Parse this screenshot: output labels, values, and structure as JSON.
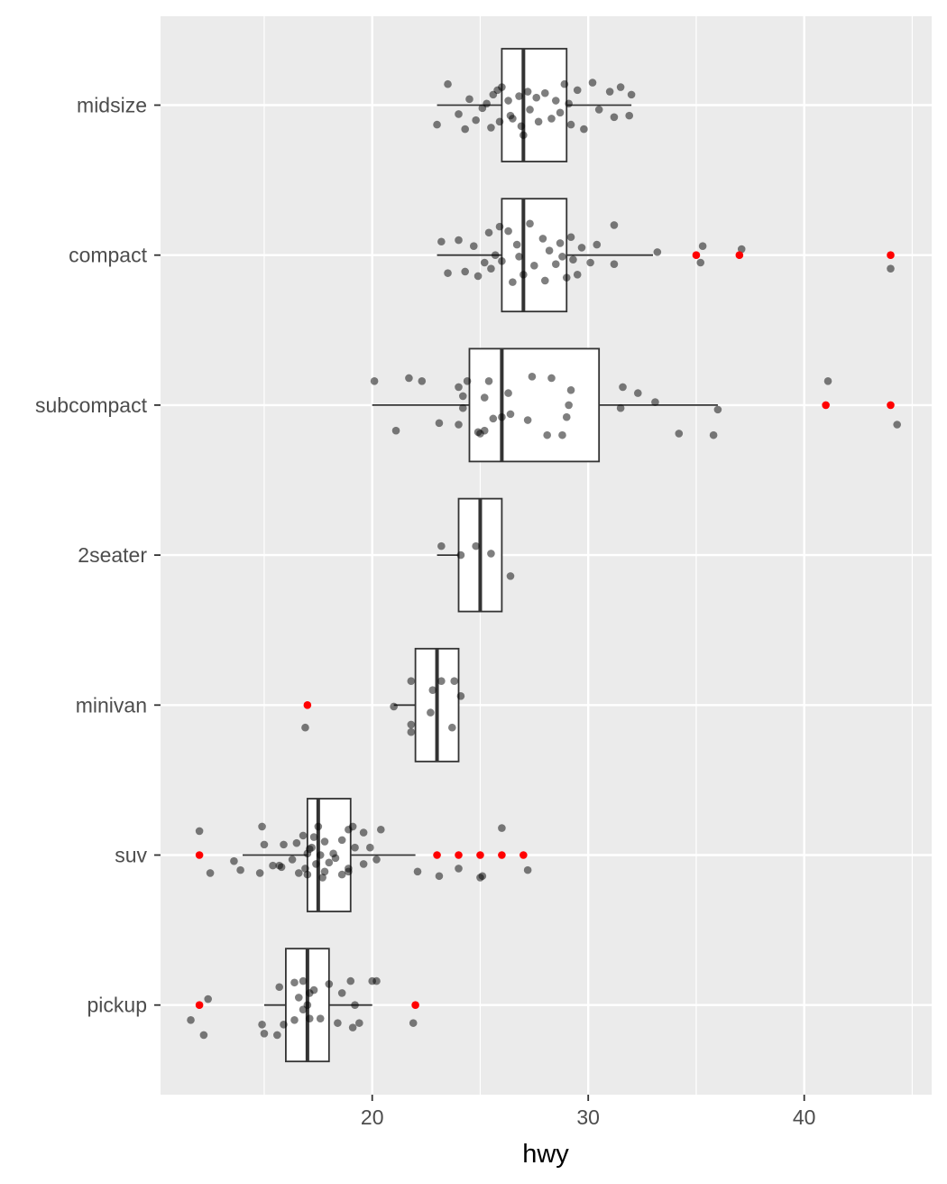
{
  "chart_data": {
    "type": "boxplot",
    "orientation": "horizontal",
    "xlabel": "hwy",
    "ylabel": "",
    "xlim": [
      10.2,
      45.9
    ],
    "xticks": [
      20,
      30,
      40
    ],
    "xtick_labels": [
      "20",
      "30",
      "40"
    ],
    "categories": [
      "midsize",
      "compact",
      "subcompact",
      "2seater",
      "minivan",
      "suv",
      "pickup"
    ],
    "grid": true,
    "legend": "none",
    "colors": {
      "panel_background": "#ebebeb",
      "grid": "#ffffff",
      "box_fill": "#ffffff",
      "box_line": "#333333",
      "jitter_point": "#000000",
      "jitter_alpha": 0.5,
      "outlier": "#ff0000"
    },
    "boxes": [
      {
        "category": "midsize",
        "whisker_low": 23,
        "q1": 26,
        "median": 27,
        "q3": 29,
        "whisker_high": 32,
        "outliers": []
      },
      {
        "category": "compact",
        "whisker_low": 23,
        "q1": 26,
        "median": 27,
        "q3": 29,
        "whisker_high": 33,
        "outliers": [
          35,
          37,
          44
        ]
      },
      {
        "category": "subcompact",
        "whisker_low": 20,
        "q1": 24.5,
        "median": 26,
        "q3": 30.5,
        "whisker_high": 36,
        "outliers": [
          41,
          44
        ]
      },
      {
        "category": "2seater",
        "whisker_low": 23,
        "q1": 24,
        "median": 25,
        "q3": 26,
        "whisker_high": 26,
        "outliers": []
      },
      {
        "category": "minivan",
        "whisker_low": 21,
        "q1": 22,
        "median": 23,
        "q3": 24,
        "whisker_high": 24,
        "outliers": [
          17
        ]
      },
      {
        "category": "suv",
        "whisker_low": 14,
        "q1": 17,
        "median": 17.5,
        "q3": 19,
        "whisker_high": 22,
        "outliers": [
          12,
          23,
          24,
          25,
          26,
          27
        ]
      },
      {
        "category": "pickup",
        "whisker_low": 15,
        "q1": 16,
        "median": 17,
        "q3": 18,
        "whisker_high": 20,
        "outliers": [
          12,
          22
        ]
      }
    ],
    "jitter_points": [
      {
        "category": "midsize",
        "points": [
          [
            23.5,
            0.14
          ],
          [
            24.5,
            0.04
          ],
          [
            25.3,
            0.01
          ],
          [
            25.6,
            0.07
          ],
          [
            26.0,
            0.12
          ],
          [
            26.3,
            0.03
          ],
          [
            26.8,
            0.06
          ],
          [
            27.2,
            0.09
          ],
          [
            27.6,
            0.05
          ],
          [
            28.0,
            0.08
          ],
          [
            28.5,
            0.03
          ],
          [
            28.9,
            0.14
          ],
          [
            29.1,
            0.01
          ],
          [
            29.5,
            0.1
          ],
          [
            30.2,
            0.15
          ],
          [
            31.0,
            0.09
          ],
          [
            31.5,
            0.12
          ],
          [
            32.0,
            0.07
          ],
          [
            23.0,
            -0.13
          ],
          [
            24.0,
            -0.06
          ],
          [
            24.8,
            -0.1
          ],
          [
            25.1,
            -0.02
          ],
          [
            25.5,
            -0.15
          ],
          [
            25.9,
            -0.11
          ],
          [
            26.4,
            -0.07
          ],
          [
            26.9,
            -0.14
          ],
          [
            27.3,
            -0.03
          ],
          [
            27.7,
            -0.11
          ],
          [
            28.3,
            -0.09
          ],
          [
            28.7,
            -0.05
          ],
          [
            29.2,
            -0.13
          ],
          [
            29.8,
            -0.16
          ],
          [
            30.5,
            -0.03
          ],
          [
            31.2,
            -0.08
          ],
          [
            31.9,
            -0.07
          ],
          [
            25.8,
            0.1
          ],
          [
            27.0,
            -0.2
          ],
          [
            26.5,
            -0.09
          ],
          [
            24.3,
            -0.16
          ]
        ]
      },
      {
        "category": "compact",
        "points": [
          [
            23.2,
            0.09
          ],
          [
            24.0,
            0.1
          ],
          [
            24.7,
            0.06
          ],
          [
            25.4,
            0.15
          ],
          [
            25.9,
            0.19
          ],
          [
            26.3,
            0.16
          ],
          [
            26.7,
            0.07
          ],
          [
            27.3,
            0.21
          ],
          [
            27.9,
            0.11
          ],
          [
            28.7,
            0.08
          ],
          [
            29.2,
            0.12
          ],
          [
            29.7,
            0.05
          ],
          [
            30.4,
            0.07
          ],
          [
            31.2,
            0.2
          ],
          [
            33.2,
            0.02
          ],
          [
            35.3,
            0.06
          ],
          [
            37.1,
            0.04
          ],
          [
            23.5,
            -0.12
          ],
          [
            24.3,
            -0.11
          ],
          [
            24.9,
            -0.14
          ],
          [
            25.5,
            -0.09
          ],
          [
            26.0,
            -0.04
          ],
          [
            26.5,
            -0.18
          ],
          [
            27.0,
            -0.13
          ],
          [
            27.5,
            -0.07
          ],
          [
            28.0,
            -0.17
          ],
          [
            28.5,
            -0.06
          ],
          [
            29.0,
            -0.15
          ],
          [
            29.5,
            -0.13
          ],
          [
            30.1,
            -0.05
          ],
          [
            31.2,
            -0.06
          ],
          [
            35.2,
            -0.05
          ],
          [
            44.0,
            -0.09
          ],
          [
            25.2,
            -0.05
          ],
          [
            26.8,
            -0.01
          ],
          [
            28.8,
            -0.01
          ],
          [
            29.3,
            -0.03
          ],
          [
            28.2,
            0.03
          ],
          [
            25.7,
            0.0
          ]
        ]
      },
      {
        "category": "subcompact",
        "points": [
          [
            20.1,
            0.16
          ],
          [
            21.7,
            0.18
          ],
          [
            22.3,
            0.16
          ],
          [
            24.0,
            0.12
          ],
          [
            24.4,
            0.16
          ],
          [
            25.4,
            0.16
          ],
          [
            26.3,
            0.08
          ],
          [
            27.4,
            0.19
          ],
          [
            28.3,
            0.18
          ],
          [
            29.2,
            0.1
          ],
          [
            31.6,
            0.12
          ],
          [
            32.3,
            0.08
          ],
          [
            33.1,
            0.02
          ],
          [
            41.1,
            0.16
          ],
          [
            24.2,
            0.06
          ],
          [
            25.2,
            0.05
          ],
          [
            29.1,
            0.0
          ],
          [
            21.1,
            -0.17
          ],
          [
            23.1,
            -0.12
          ],
          [
            24.0,
            -0.13
          ],
          [
            24.2,
            -0.02
          ],
          [
            24.9,
            -0.18
          ],
          [
            25.2,
            -0.17
          ],
          [
            25.6,
            -0.09
          ],
          [
            26.0,
            -0.08
          ],
          [
            26.4,
            -0.06
          ],
          [
            27.2,
            -0.1
          ],
          [
            28.1,
            -0.2
          ],
          [
            28.8,
            -0.2
          ],
          [
            29.0,
            -0.08
          ],
          [
            31.5,
            -0.02
          ],
          [
            34.2,
            -0.19
          ],
          [
            36.0,
            -0.03
          ],
          [
            35.8,
            -0.2
          ],
          [
            44.3,
            -0.13
          ],
          [
            25.0,
            -0.19
          ]
        ]
      },
      {
        "category": "2seater",
        "points": [
          [
            23.2,
            0.06
          ],
          [
            24.8,
            0.06
          ],
          [
            25.5,
            0.01
          ],
          [
            24.1,
            0.0
          ],
          [
            26.4,
            -0.14
          ]
        ]
      },
      {
        "category": "minivan",
        "points": [
          [
            21.0,
            -0.01
          ],
          [
            21.8,
            0.16
          ],
          [
            22.8,
            0.1
          ],
          [
            23.2,
            0.16
          ],
          [
            23.8,
            0.16
          ],
          [
            24.1,
            0.06
          ],
          [
            23.7,
            -0.15
          ],
          [
            22.7,
            -0.05
          ],
          [
            21.8,
            -0.13
          ],
          [
            21.8,
            -0.18
          ],
          [
            16.9,
            -0.15
          ]
        ]
      },
      {
        "category": "suv",
        "points": [
          [
            12.0,
            0.16
          ],
          [
            14.9,
            0.19
          ],
          [
            15.0,
            0.07
          ],
          [
            15.9,
            0.07
          ],
          [
            16.5,
            0.08
          ],
          [
            16.8,
            0.13
          ],
          [
            17.0,
            0.01
          ],
          [
            17.1,
            0.04
          ],
          [
            17.2,
            0.05
          ],
          [
            17.3,
            0.12
          ],
          [
            17.5,
            0.19
          ],
          [
            17.8,
            0.09
          ],
          [
            18.2,
            0.01
          ],
          [
            18.6,
            0.1
          ],
          [
            18.9,
            0.17
          ],
          [
            19.1,
            0.19
          ],
          [
            19.2,
            0.05
          ],
          [
            19.6,
            0.15
          ],
          [
            19.9,
            0.05
          ],
          [
            20.4,
            0.17
          ],
          [
            22.1,
            -0.11
          ],
          [
            23.1,
            -0.14
          ],
          [
            24.0,
            -0.09
          ],
          [
            25.0,
            -0.15
          ],
          [
            25.1,
            -0.14
          ],
          [
            26.0,
            0.18
          ],
          [
            27.2,
            -0.1
          ],
          [
            12.5,
            -0.12
          ],
          [
            13.6,
            -0.04
          ],
          [
            13.9,
            -0.1
          ],
          [
            14.8,
            -0.12
          ],
          [
            15.4,
            -0.07
          ],
          [
            15.8,
            -0.08
          ],
          [
            16.3,
            -0.03
          ],
          [
            16.6,
            -0.12
          ],
          [
            17.0,
            -0.13
          ],
          [
            17.4,
            -0.06
          ],
          [
            17.8,
            -0.11
          ],
          [
            18.3,
            -0.02
          ],
          [
            18.6,
            -0.13
          ],
          [
            18.9,
            -0.09
          ],
          [
            19.6,
            -0.06
          ],
          [
            20.2,
            -0.03
          ],
          [
            18.0,
            -0.05
          ],
          [
            18.9,
            -0.11
          ],
          [
            17.6,
            0.0
          ],
          [
            15.7,
            -0.07
          ],
          [
            17.7,
            -0.15
          ],
          [
            16.9,
            -0.09
          ]
        ]
      },
      {
        "category": "pickup",
        "points": [
          [
            12.4,
            0.04
          ],
          [
            15.7,
            0.12
          ],
          [
            16.4,
            0.15
          ],
          [
            16.8,
            0.16
          ],
          [
            17.1,
            0.08
          ],
          [
            17.3,
            0.1
          ],
          [
            18.0,
            0.14
          ],
          [
            19.0,
            0.16
          ],
          [
            20.0,
            0.16
          ],
          [
            20.2,
            0.16
          ],
          [
            18.6,
            0.08
          ],
          [
            19.2,
            0.0
          ],
          [
            17.0,
            0.0
          ],
          [
            16.6,
            0.05
          ],
          [
            16.4,
            -0.1
          ],
          [
            17.1,
            -0.09
          ],
          [
            17.6,
            -0.09
          ],
          [
            18.4,
            -0.12
          ],
          [
            19.1,
            -0.15
          ],
          [
            19.4,
            -0.12
          ],
          [
            21.9,
            -0.12
          ],
          [
            15.6,
            -0.2
          ],
          [
            15.9,
            -0.13
          ],
          [
            11.6,
            -0.1
          ],
          [
            12.2,
            -0.2
          ],
          [
            14.9,
            -0.13
          ],
          [
            15.0,
            -0.19
          ],
          [
            16.8,
            -0.03
          ]
        ]
      }
    ]
  }
}
